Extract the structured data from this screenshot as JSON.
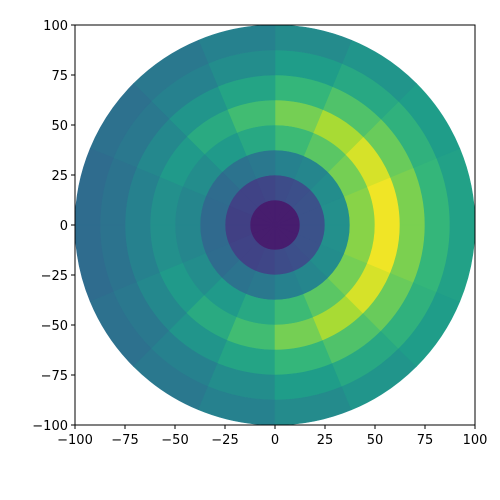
{
  "chart_data": {
    "type": "polar_heatmap",
    "colormap": "viridis",
    "clim": [
      0,
      1
    ],
    "r_edges": [
      0,
      12.5,
      25,
      37.5,
      50,
      62.5,
      75,
      87.5,
      100
    ],
    "theta_edges": [
      0,
      22.5,
      45,
      67.5,
      90,
      112.5,
      135,
      157.5,
      180,
      202.5,
      225,
      247.5,
      270,
      292.5,
      315,
      337.5,
      360
    ],
    "values": [
      [
        0.08,
        0.08,
        0.08,
        0.08,
        0.08,
        0.08,
        0.08,
        0.08,
        0.08,
        0.08,
        0.08,
        0.08,
        0.08,
        0.08,
        0.08,
        0.08
      ],
      [
        0.25,
        0.25,
        0.24,
        0.23,
        0.21,
        0.2,
        0.2,
        0.19,
        0.19,
        0.2,
        0.2,
        0.21,
        0.23,
        0.24,
        0.25,
        0.25
      ],
      [
        0.5,
        0.49,
        0.46,
        0.44,
        0.4,
        0.38,
        0.35,
        0.34,
        0.34,
        0.35,
        0.38,
        0.4,
        0.44,
        0.46,
        0.49,
        0.5
      ],
      [
        0.82,
        0.79,
        0.74,
        0.68,
        0.6,
        0.54,
        0.49,
        0.46,
        0.46,
        0.49,
        0.54,
        0.6,
        0.68,
        0.74,
        0.79,
        0.82
      ],
      [
        0.98,
        0.94,
        0.87,
        0.79,
        0.69,
        0.61,
        0.54,
        0.5,
        0.5,
        0.54,
        0.61,
        0.69,
        0.79,
        0.87,
        0.94,
        0.98
      ],
      [
        0.8,
        0.77,
        0.72,
        0.66,
        0.58,
        0.52,
        0.47,
        0.44,
        0.44,
        0.47,
        0.52,
        0.58,
        0.66,
        0.72,
        0.77,
        0.8
      ],
      [
        0.66,
        0.64,
        0.6,
        0.55,
        0.49,
        0.44,
        0.4,
        0.38,
        0.38,
        0.4,
        0.44,
        0.49,
        0.55,
        0.6,
        0.64,
        0.66
      ],
      [
        0.57,
        0.55,
        0.52,
        0.48,
        0.44,
        0.4,
        0.37,
        0.35,
        0.35,
        0.37,
        0.4,
        0.44,
        0.48,
        0.52,
        0.55,
        0.57
      ]
    ],
    "xlim": [
      -100,
      100
    ],
    "ylim": [
      -100,
      100
    ],
    "xticks": [
      {
        "value": -100,
        "label": "−100"
      },
      {
        "value": -75,
        "label": "−75"
      },
      {
        "value": -50,
        "label": "−50"
      },
      {
        "value": -25,
        "label": "−25"
      },
      0,
      25,
      50,
      75,
      100
    ],
    "yticks": [
      {
        "value": -100,
        "label": "−100"
      },
      {
        "value": -75,
        "label": "−75"
      },
      {
        "value": -50,
        "label": "−50"
      },
      {
        "value": -25,
        "label": "−25"
      },
      0,
      25,
      50,
      75,
      100
    ]
  }
}
